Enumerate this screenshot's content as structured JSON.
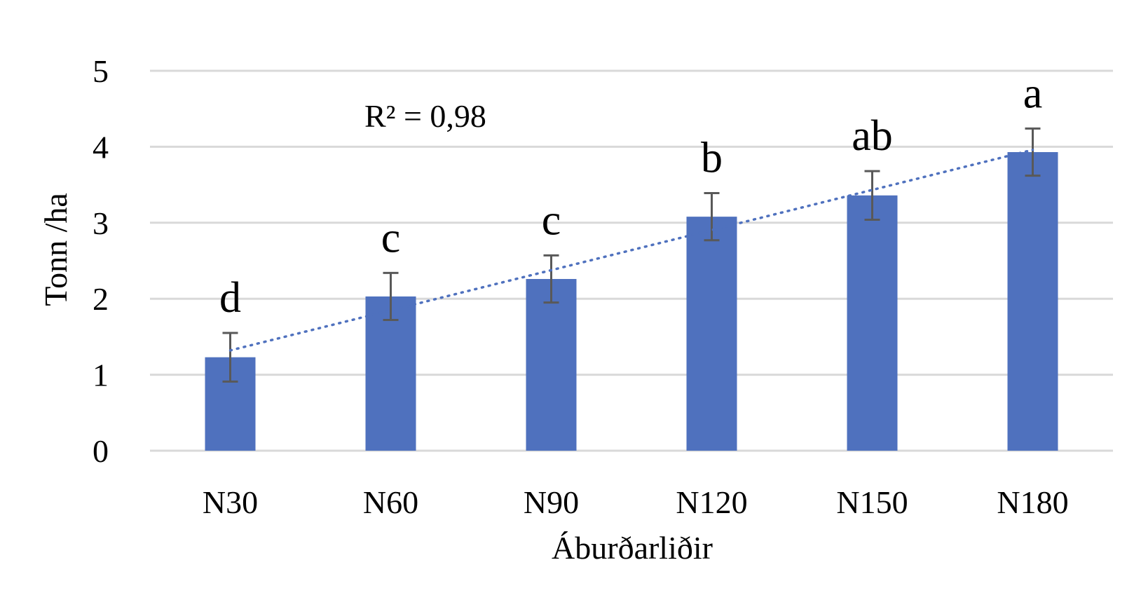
{
  "chart_data": {
    "type": "bar",
    "categories": [
      "N30",
      "N60",
      "N90",
      "N120",
      "N150",
      "N180"
    ],
    "values": [
      1.23,
      2.03,
      2.26,
      3.08,
      3.36,
      3.93
    ],
    "error": [
      0.32,
      0.31,
      0.31,
      0.31,
      0.32,
      0.31
    ],
    "significance_labels": [
      "d",
      "c",
      "c",
      "b",
      "ab",
      "a"
    ],
    "trendline": {
      "type": "linear",
      "start": 1.32,
      "end": 3.96,
      "label": "R² = 0,98"
    },
    "xlabel": "Áburðarliðir",
    "ylabel": "Tonn /ha",
    "ylim": [
      0,
      5
    ],
    "yticks": [
      "0",
      "1",
      "2",
      "3",
      "4",
      "5"
    ],
    "grid": true,
    "colors": {
      "bar": "#4f71be",
      "trend": "#4f71be",
      "grid": "#d9d9d9",
      "error": "#595959"
    }
  }
}
